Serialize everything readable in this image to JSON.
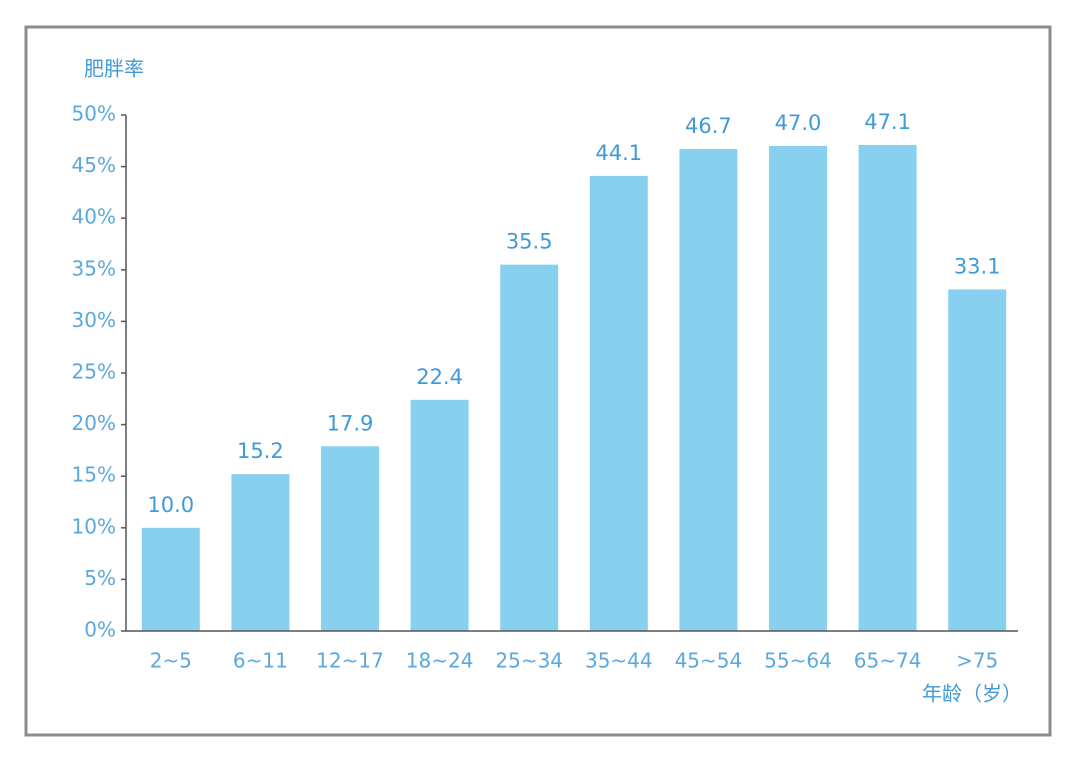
{
  "chart_data": {
    "type": "bar",
    "y_label": "肥胖率",
    "x_label": "年龄（岁）",
    "categories": [
      "2~5",
      "6~11",
      "12~17",
      "18~24",
      "25~34",
      "35~44",
      "45~54",
      "55~64",
      "65~74",
      ">75"
    ],
    "values": [
      10.0,
      15.2,
      17.9,
      22.4,
      35.5,
      44.1,
      46.7,
      47.0,
      47.1,
      33.1
    ],
    "value_labels": [
      "10.0",
      "15.2",
      "17.9",
      "22.4",
      "35.5",
      "44.1",
      "46.7",
      "47.0",
      "47.1",
      "33.1"
    ],
    "color": "#88d0f0",
    "ylim": [
      0,
      50
    ],
    "yticks": [
      {
        "value": 0,
        "label": "0%"
      },
      {
        "value": 5,
        "label": "5%"
      },
      {
        "value": 10,
        "label": "10%"
      },
      {
        "value": 15,
        "label": "15%"
      },
      {
        "value": 20,
        "label": "20%"
      },
      {
        "value": 25,
        "label": "25%"
      },
      {
        "value": 30,
        "label": "30%"
      },
      {
        "value": 35,
        "label": "35%"
      },
      {
        "value": 40,
        "label": "40%"
      },
      {
        "value": 45,
        "label": "45%"
      },
      {
        "value": 50,
        "label": "50%"
      }
    ]
  }
}
